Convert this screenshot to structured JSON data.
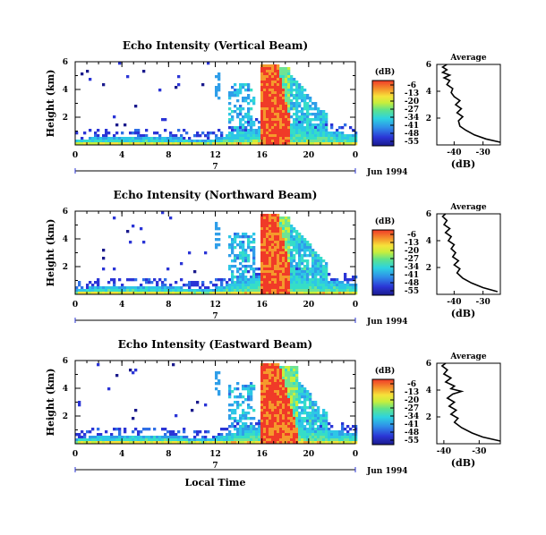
{
  "chart_data": [
    {
      "type": "heatmap",
      "title": "Echo Intensity (Vertical Beam)",
      "ylabel": "Height (km)",
      "xlabel": "",
      "x_ticks": [
        "0",
        "4",
        "8",
        "12",
        "16",
        "20",
        "0"
      ],
      "y_ticks": [
        "6",
        "4",
        "2"
      ],
      "date_marker": "7",
      "date_label": "Jun 1994",
      "xlim": [
        0,
        24
      ],
      "ylim": [
        0,
        6
      ],
      "colorbar": {
        "label": "(dB)",
        "ticks": [
          "-6",
          "-13",
          "-20",
          "-27",
          "-34",
          "-41",
          "-48",
          "-55"
        ]
      },
      "profile": {
        "title": "Average",
        "xlabel": "(dB)",
        "x_ticks": [
          "-40",
          "-30"
        ],
        "y_ticks": [
          "6",
          "4",
          "2"
        ],
        "xlim": [
          -46,
          -24
        ],
        "points": [
          [
            -24,
            0.2
          ],
          [
            -29,
            0.45
          ],
          [
            -33,
            0.75
          ],
          [
            -36,
            1.1
          ],
          [
            -38,
            1.4
          ],
          [
            -38.5,
            1.8
          ],
          [
            -37,
            2.1
          ],
          [
            -39,
            2.4
          ],
          [
            -37.5,
            2.7
          ],
          [
            -39.5,
            3.0
          ],
          [
            -38,
            3.3
          ],
          [
            -40,
            3.6
          ],
          [
            -41,
            3.9
          ],
          [
            -40.5,
            4.2
          ],
          [
            -42.5,
            4.5
          ],
          [
            -41.5,
            4.8
          ],
          [
            -43.5,
            5.0
          ],
          [
            -41.5,
            5.2
          ],
          [
            -44,
            5.4
          ],
          [
            -42.5,
            5.6
          ],
          [
            -44,
            5.8
          ],
          [
            -42.5,
            6.0
          ]
        ]
      }
    },
    {
      "type": "heatmap",
      "title": "Echo Intensity (Northward Beam)",
      "ylabel": "Height (km)",
      "xlabel": "",
      "x_ticks": [
        "0",
        "4",
        "8",
        "12",
        "16",
        "20",
        "0"
      ],
      "y_ticks": [
        "6",
        "4",
        "2"
      ],
      "date_marker": "7",
      "date_label": "Jun 1994",
      "xlim": [
        0,
        24
      ],
      "ylim": [
        0,
        6
      ],
      "colorbar": {
        "label": "(dB)",
        "ticks": [
          "-6",
          "-13",
          "-20",
          "-27",
          "-34",
          "-41",
          "-48",
          "-55"
        ]
      },
      "profile": {
        "title": "Average",
        "xlabel": "(dB)",
        "x_ticks": [
          "-40",
          "-30"
        ],
        "y_ticks": [
          "6",
          "4",
          "2"
        ],
        "xlim": [
          -46,
          -24
        ],
        "points": [
          [
            -25,
            0.2
          ],
          [
            -30,
            0.5
          ],
          [
            -34,
            0.85
          ],
          [
            -37,
            1.2
          ],
          [
            -39,
            1.6
          ],
          [
            -38,
            1.9
          ],
          [
            -40,
            2.2
          ],
          [
            -38.5,
            2.5
          ],
          [
            -40.5,
            2.8
          ],
          [
            -39.5,
            3.1
          ],
          [
            -41,
            3.4
          ],
          [
            -40,
            3.7
          ],
          [
            -42,
            4.0
          ],
          [
            -41,
            4.3
          ],
          [
            -43,
            4.6
          ],
          [
            -41.5,
            4.9
          ],
          [
            -43.5,
            5.2
          ],
          [
            -42.5,
            5.5
          ],
          [
            -44,
            5.8
          ],
          [
            -43,
            6.0
          ]
        ]
      }
    },
    {
      "type": "heatmap",
      "title": "Echo Intensity (Eastward Beam)",
      "ylabel": "Height (km)",
      "xlabel": "Local Time",
      "x_ticks": [
        "0",
        "4",
        "8",
        "12",
        "16",
        "20",
        "0"
      ],
      "y_ticks": [
        "6",
        "4",
        "2"
      ],
      "date_marker": "7",
      "date_label": "Jun 1994",
      "xlim": [
        0,
        24
      ],
      "ylim": [
        0,
        6
      ],
      "colorbar": {
        "label": "(dB)",
        "ticks": [
          "-6",
          "-13",
          "-20",
          "-27",
          "-34",
          "-41",
          "-48",
          "-55"
        ]
      },
      "profile": {
        "title": "Average",
        "xlabel": "(dB)",
        "x_ticks": [
          "-40",
          "-30"
        ],
        "y_ticks": [
          "6",
          "4",
          "2"
        ],
        "xlim": [
          -42,
          -24
        ],
        "points": [
          [
            -24,
            0.2
          ],
          [
            -29,
            0.5
          ],
          [
            -32,
            0.8
          ],
          [
            -35,
            1.2
          ],
          [
            -37,
            1.6
          ],
          [
            -36,
            1.9
          ],
          [
            -38,
            2.2
          ],
          [
            -36.5,
            2.5
          ],
          [
            -38.5,
            2.8
          ],
          [
            -37,
            3.1
          ],
          [
            -39,
            3.4
          ],
          [
            -37.5,
            3.7
          ],
          [
            -35,
            3.9
          ],
          [
            -38,
            4.1
          ],
          [
            -37,
            4.3
          ],
          [
            -39.5,
            4.6
          ],
          [
            -38,
            4.9
          ],
          [
            -40,
            5.2
          ],
          [
            -39,
            5.5
          ],
          [
            -40.5,
            5.8
          ],
          [
            -39.5,
            6.0
          ]
        ]
      }
    }
  ]
}
